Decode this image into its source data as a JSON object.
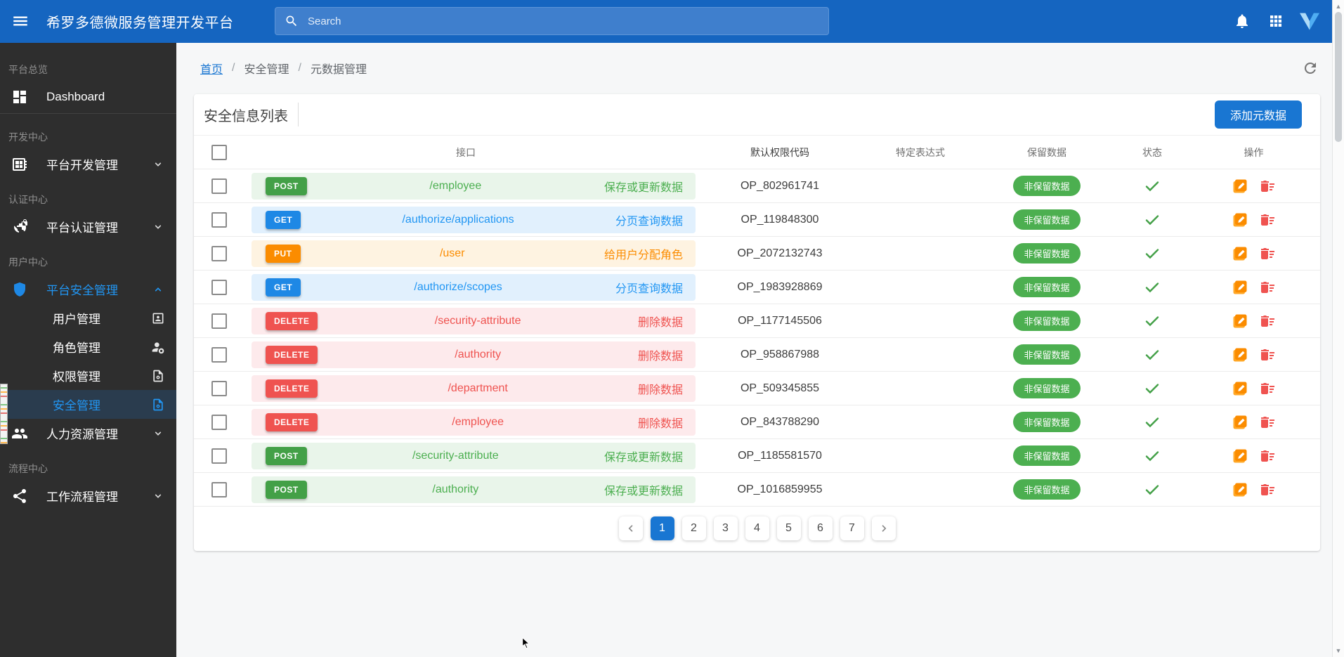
{
  "header": {
    "title": "希罗多德微服务管理开发平台",
    "search_placeholder": "Search"
  },
  "sidebar": {
    "entries": [
      {
        "type": "label",
        "text": "平台总览"
      },
      {
        "type": "item",
        "id": "dashboard",
        "icon": "dashboard-icon",
        "text": "Dashboard"
      },
      {
        "type": "divider"
      },
      {
        "type": "label",
        "text": "开发中心"
      },
      {
        "type": "item",
        "id": "platform-dev",
        "icon": "dev-board-icon",
        "text": "平台开发管理",
        "chevron": "down"
      },
      {
        "type": "label",
        "text": "认证中心"
      },
      {
        "type": "item",
        "id": "platform-auth",
        "icon": "globe-lock-icon",
        "text": "平台认证管理",
        "chevron": "down"
      },
      {
        "type": "label",
        "text": "用户中心"
      },
      {
        "type": "item",
        "id": "platform-security",
        "icon": "shield-icon",
        "text": "平台安全管理",
        "chevron": "up",
        "active": true
      },
      {
        "type": "subitem",
        "id": "user-mgmt",
        "text": "用户管理",
        "right_icon": "contact-card-icon"
      },
      {
        "type": "subitem",
        "id": "role-mgmt",
        "text": "角色管理",
        "right_icon": "person-key-icon"
      },
      {
        "type": "subitem",
        "id": "permission-mgmt",
        "text": "权限管理",
        "right_icon": "doc-gear-icon"
      },
      {
        "type": "subitem",
        "id": "security-mgmt",
        "text": "安全管理",
        "right_icon": "doc-gear-icon",
        "selected": true
      },
      {
        "type": "item",
        "id": "hr-mgmt",
        "icon": "people-icon",
        "text": "人力资源管理",
        "chevron": "down"
      },
      {
        "type": "label",
        "text": "流程中心"
      },
      {
        "type": "item",
        "id": "workflow-mgmt",
        "icon": "workflow-icon",
        "text": "工作流程管理",
        "chevron": "down"
      }
    ]
  },
  "breadcrumb": {
    "items": [
      "首页",
      "安全管理",
      "元数据管理"
    ],
    "separator": "/"
  },
  "card": {
    "title": "安全信息列表",
    "add_button": "添加元数据"
  },
  "table": {
    "columns": [
      "接口",
      "默认权限代码",
      "特定表达式",
      "保留数据",
      "状态",
      "操作"
    ],
    "rows": [
      {
        "method": "POST",
        "path": "/employee",
        "description": "保存或更新数据",
        "code": "OP_802961741",
        "expression": "",
        "retain": "非保留数据",
        "status": true
      },
      {
        "method": "GET",
        "path": "/authorize/applications",
        "description": "分页查询数据",
        "code": "OP_119848300",
        "expression": "",
        "retain": "非保留数据",
        "status": true
      },
      {
        "method": "PUT",
        "path": "/user",
        "description": "给用户分配角色",
        "code": "OP_2072132743",
        "expression": "",
        "retain": "非保留数据",
        "status": true
      },
      {
        "method": "GET",
        "path": "/authorize/scopes",
        "description": "分页查询数据",
        "code": "OP_1983928869",
        "expression": "",
        "retain": "非保留数据",
        "status": true
      },
      {
        "method": "DELETE",
        "path": "/security-attribute",
        "description": "删除数据",
        "code": "OP_1177145506",
        "expression": "",
        "retain": "非保留数据",
        "status": true
      },
      {
        "method": "DELETE",
        "path": "/authority",
        "description": "删除数据",
        "code": "OP_958867988",
        "expression": "",
        "retain": "非保留数据",
        "status": true
      },
      {
        "method": "DELETE",
        "path": "/department",
        "description": "删除数据",
        "code": "OP_509345855",
        "expression": "",
        "retain": "非保留数据",
        "status": true
      },
      {
        "method": "DELETE",
        "path": "/employee",
        "description": "删除数据",
        "code": "OP_843788290",
        "expression": "",
        "retain": "非保留数据",
        "status": true
      },
      {
        "method": "POST",
        "path": "/security-attribute",
        "description": "保存或更新数据",
        "code": "OP_1185581570",
        "expression": "",
        "retain": "非保留数据",
        "status": true
      },
      {
        "method": "POST",
        "path": "/authority",
        "description": "保存或更新数据",
        "code": "OP_1016859955",
        "expression": "",
        "retain": "非保留数据",
        "status": true
      }
    ]
  },
  "method_styles": {
    "POST": {
      "badge": "#43A047",
      "tint": "#E9F5EA",
      "text": "#4CAF50"
    },
    "GET": {
      "badge": "#1E88E5",
      "tint": "#E1F0FD",
      "text": "#2196F3"
    },
    "PUT": {
      "badge": "#FB8C00",
      "tint": "#FEF3E1",
      "text": "#FB8C00"
    },
    "DELETE": {
      "badge": "#EF5350",
      "tint": "#FDEAEC",
      "text": "#EF5350"
    }
  },
  "colors": {
    "header_bg": "#1565C0",
    "accent": "#1976D2",
    "retain_badge": "#4CAF50",
    "status_ok": "#43A047",
    "edit_icon": "#FB8C00",
    "delete_icon": "#EF5350",
    "sidebar_active": "#2196F3"
  },
  "pagination": {
    "current": "1",
    "pages": [
      "1",
      "2",
      "3",
      "4",
      "5",
      "6",
      "7"
    ]
  }
}
